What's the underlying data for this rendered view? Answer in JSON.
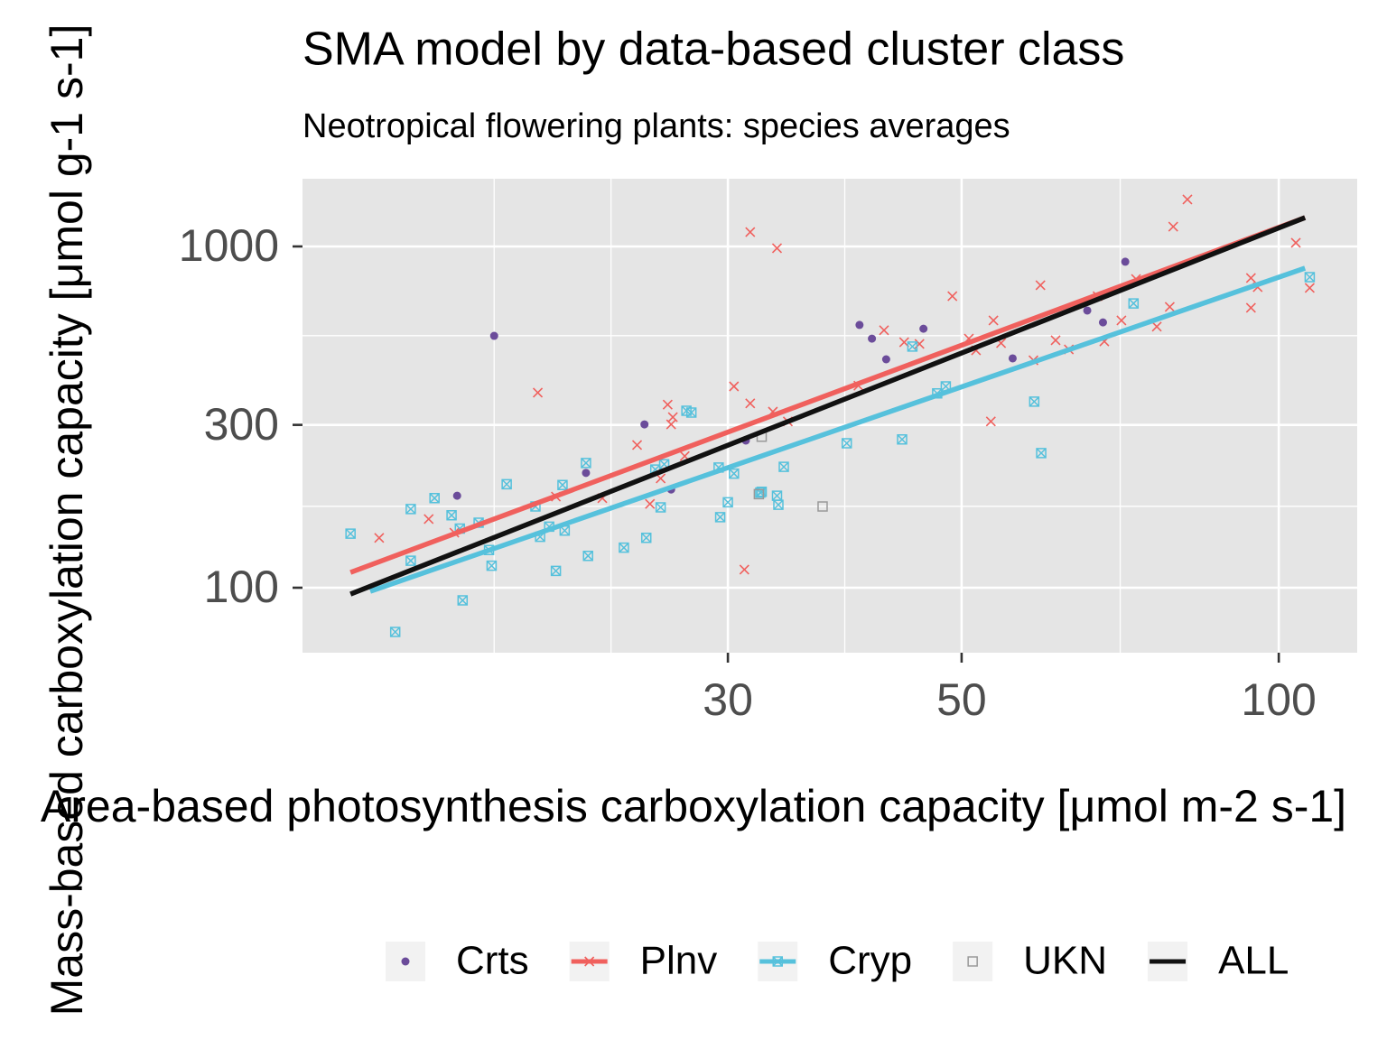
{
  "chart_data": {
    "type": "scatter",
    "title": "SMA model by data-based cluster class",
    "subtitle": "Neotropical flowering plants: species averages",
    "xlabel": "Area-based photosynthesis carboxylation capacity [μmol m-2 s-1]",
    "ylabel": "Mass-based carboxylation capacity [μmol g-1 s-1]",
    "xlog": true,
    "ylog": true,
    "grid": true,
    "legend": "bottom",
    "xlim": [
      11.84,
      118.7
    ],
    "ylim": [
      64.5,
      1579
    ],
    "xticks": [
      30,
      50,
      100
    ],
    "yticks": [
      100,
      300,
      1000
    ],
    "series": [
      {
        "name": "Crts",
        "color": "#6b4c9a",
        "marker": "circle",
        "x": [
          18.0,
          16.6,
          22.0,
          25.0,
          26.5,
          31.2,
          40.0,
          41.1,
          42.4,
          46.0,
          55.9,
          65.8,
          68.1,
          71.5
        ],
        "y": [
          547,
          186,
          217,
          301,
          194,
          270,
          589,
          537,
          467,
          574,
          470,
          649,
          599,
          902
        ]
      },
      {
        "name": "Plnv",
        "color": "#f0605d",
        "marker": "cross",
        "x": [
          14.0,
          15.6,
          16.5,
          19.8,
          20.6,
          22.8,
          24.6,
          25.3,
          25.9,
          26.3,
          26.5,
          26.6,
          27.3,
          30.4,
          31.1,
          31.5,
          31.5,
          33.1,
          33.4,
          34.2,
          39.9,
          42.2,
          44.1,
          45.6,
          49.0,
          50.8,
          51.6,
          53.3,
          53.6,
          54.5,
          58.5,
          59.4,
          61.4,
          63.2,
          67.3,
          68.3,
          70.9,
          73.2,
          76.6,
          78.8,
          79.4,
          81.9,
          94.1,
          94.1,
          95.5,
          103.8,
          107.0
        ],
        "y": [
          140,
          159,
          145,
          373,
          185,
          183,
          262,
          176,
          209,
          344,
          301,
          316,
          243,
          389,
          113,
          1102,
          347,
          328,
          988,
          307,
          391,
          568,
          524,
          518,
          715,
          537,
          496,
          307,
          607,
          521,
          464,
          770,
          531,
          499,
          715,
          527,
          607,
          803,
          582,
          665,
          1143,
          1373,
          808,
          661,
          760,
          1025,
          756
        ],
        "fit": {
          "x": [
            13.15,
            105.9
          ],
          "y": [
            110.9,
            1215
          ]
        }
      },
      {
        "name": "Cryp",
        "color": "#56c1dc",
        "marker": "boxcross",
        "x": [
          13.15,
          14.5,
          15.0,
          15.0,
          15.8,
          16.4,
          16.7,
          16.8,
          17.4,
          17.8,
          17.9,
          18.5,
          19.7,
          19.9,
          20.3,
          20.6,
          20.9,
          21.0,
          22.0,
          22.1,
          23.9,
          25.1,
          25.6,
          25.9,
          26.1,
          27.4,
          27.7,
          29.4,
          29.5,
          30.0,
          30.4,
          32.2,
          32.3,
          33.4,
          33.5,
          33.9,
          38.9,
          43.9,
          44.9,
          47.4,
          48.3,
          58.6,
          59.5,
          72.8,
          107.0
        ],
        "y": [
          144,
          74.2,
          120,
          170,
          183,
          163,
          149,
          91.8,
          155,
          129,
          116,
          201,
          173,
          141,
          151,
          112,
          200,
          147,
          232,
          124,
          131,
          140,
          222,
          172,
          230,
          330,
          326,
          225,
          161,
          178,
          216,
          190,
          191,
          186,
          175,
          226,
          265,
          272,
          509,
          371,
          389,
          351,
          248,
          681,
          813
        ],
        "fit": {
          "x": [
            13.73,
            105.9
          ],
          "y": [
            97.6,
            864
          ]
        }
      },
      {
        "name": "UKN",
        "color": "#999999",
        "marker": "square",
        "x": [
          32.3,
          32.1,
          36.9
        ],
        "y": [
          277,
          188,
          173
        ]
      },
      {
        "name": "ALL",
        "color": "#111111",
        "fit": {
          "x": [
            13.15,
            105.9
          ],
          "y": [
            95.8,
            1215
          ]
        }
      }
    ]
  }
}
